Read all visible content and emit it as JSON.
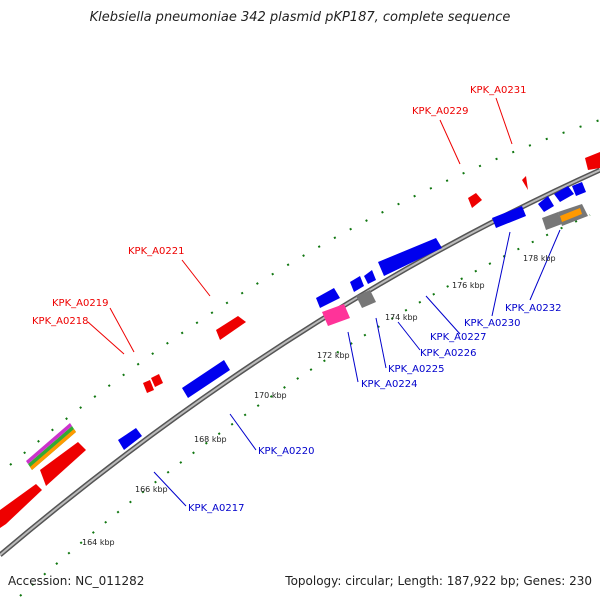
{
  "header": {
    "title": "Klebsiella pneumoniae 342 plasmid pKP187, complete sequence"
  },
  "footer": {
    "accession": "Accession: NC_011282",
    "summary": "Topology: circular; Length: 187,922 bp; Genes: 230"
  },
  "colors": {
    "forward_gene": "#ee0000",
    "reverse_gene": "#0000ee",
    "backbone": "#888888",
    "tick": "#117711",
    "pseudo": "#777777",
    "rna": "#ff3399",
    "misc": "#ff9900"
  },
  "scale_labels": [
    "164 kbp",
    "166 kbp",
    "168 kbp",
    "170 kbp",
    "172 kbp",
    "174 kbp",
    "176 kbp",
    "178 kbp"
  ],
  "forward_labels": [
    "KPK_A0218",
    "KPK_A0219",
    "KPK_A0221",
    "KPK_A0229",
    "KPK_A0231"
  ],
  "reverse_labels": [
    "KPK_A0217",
    "KPK_A0220",
    "KPK_A0224",
    "KPK_A0225",
    "KPK_A0226",
    "KPK_A0227",
    "KPK_A0230",
    "KPK_A0232"
  ]
}
